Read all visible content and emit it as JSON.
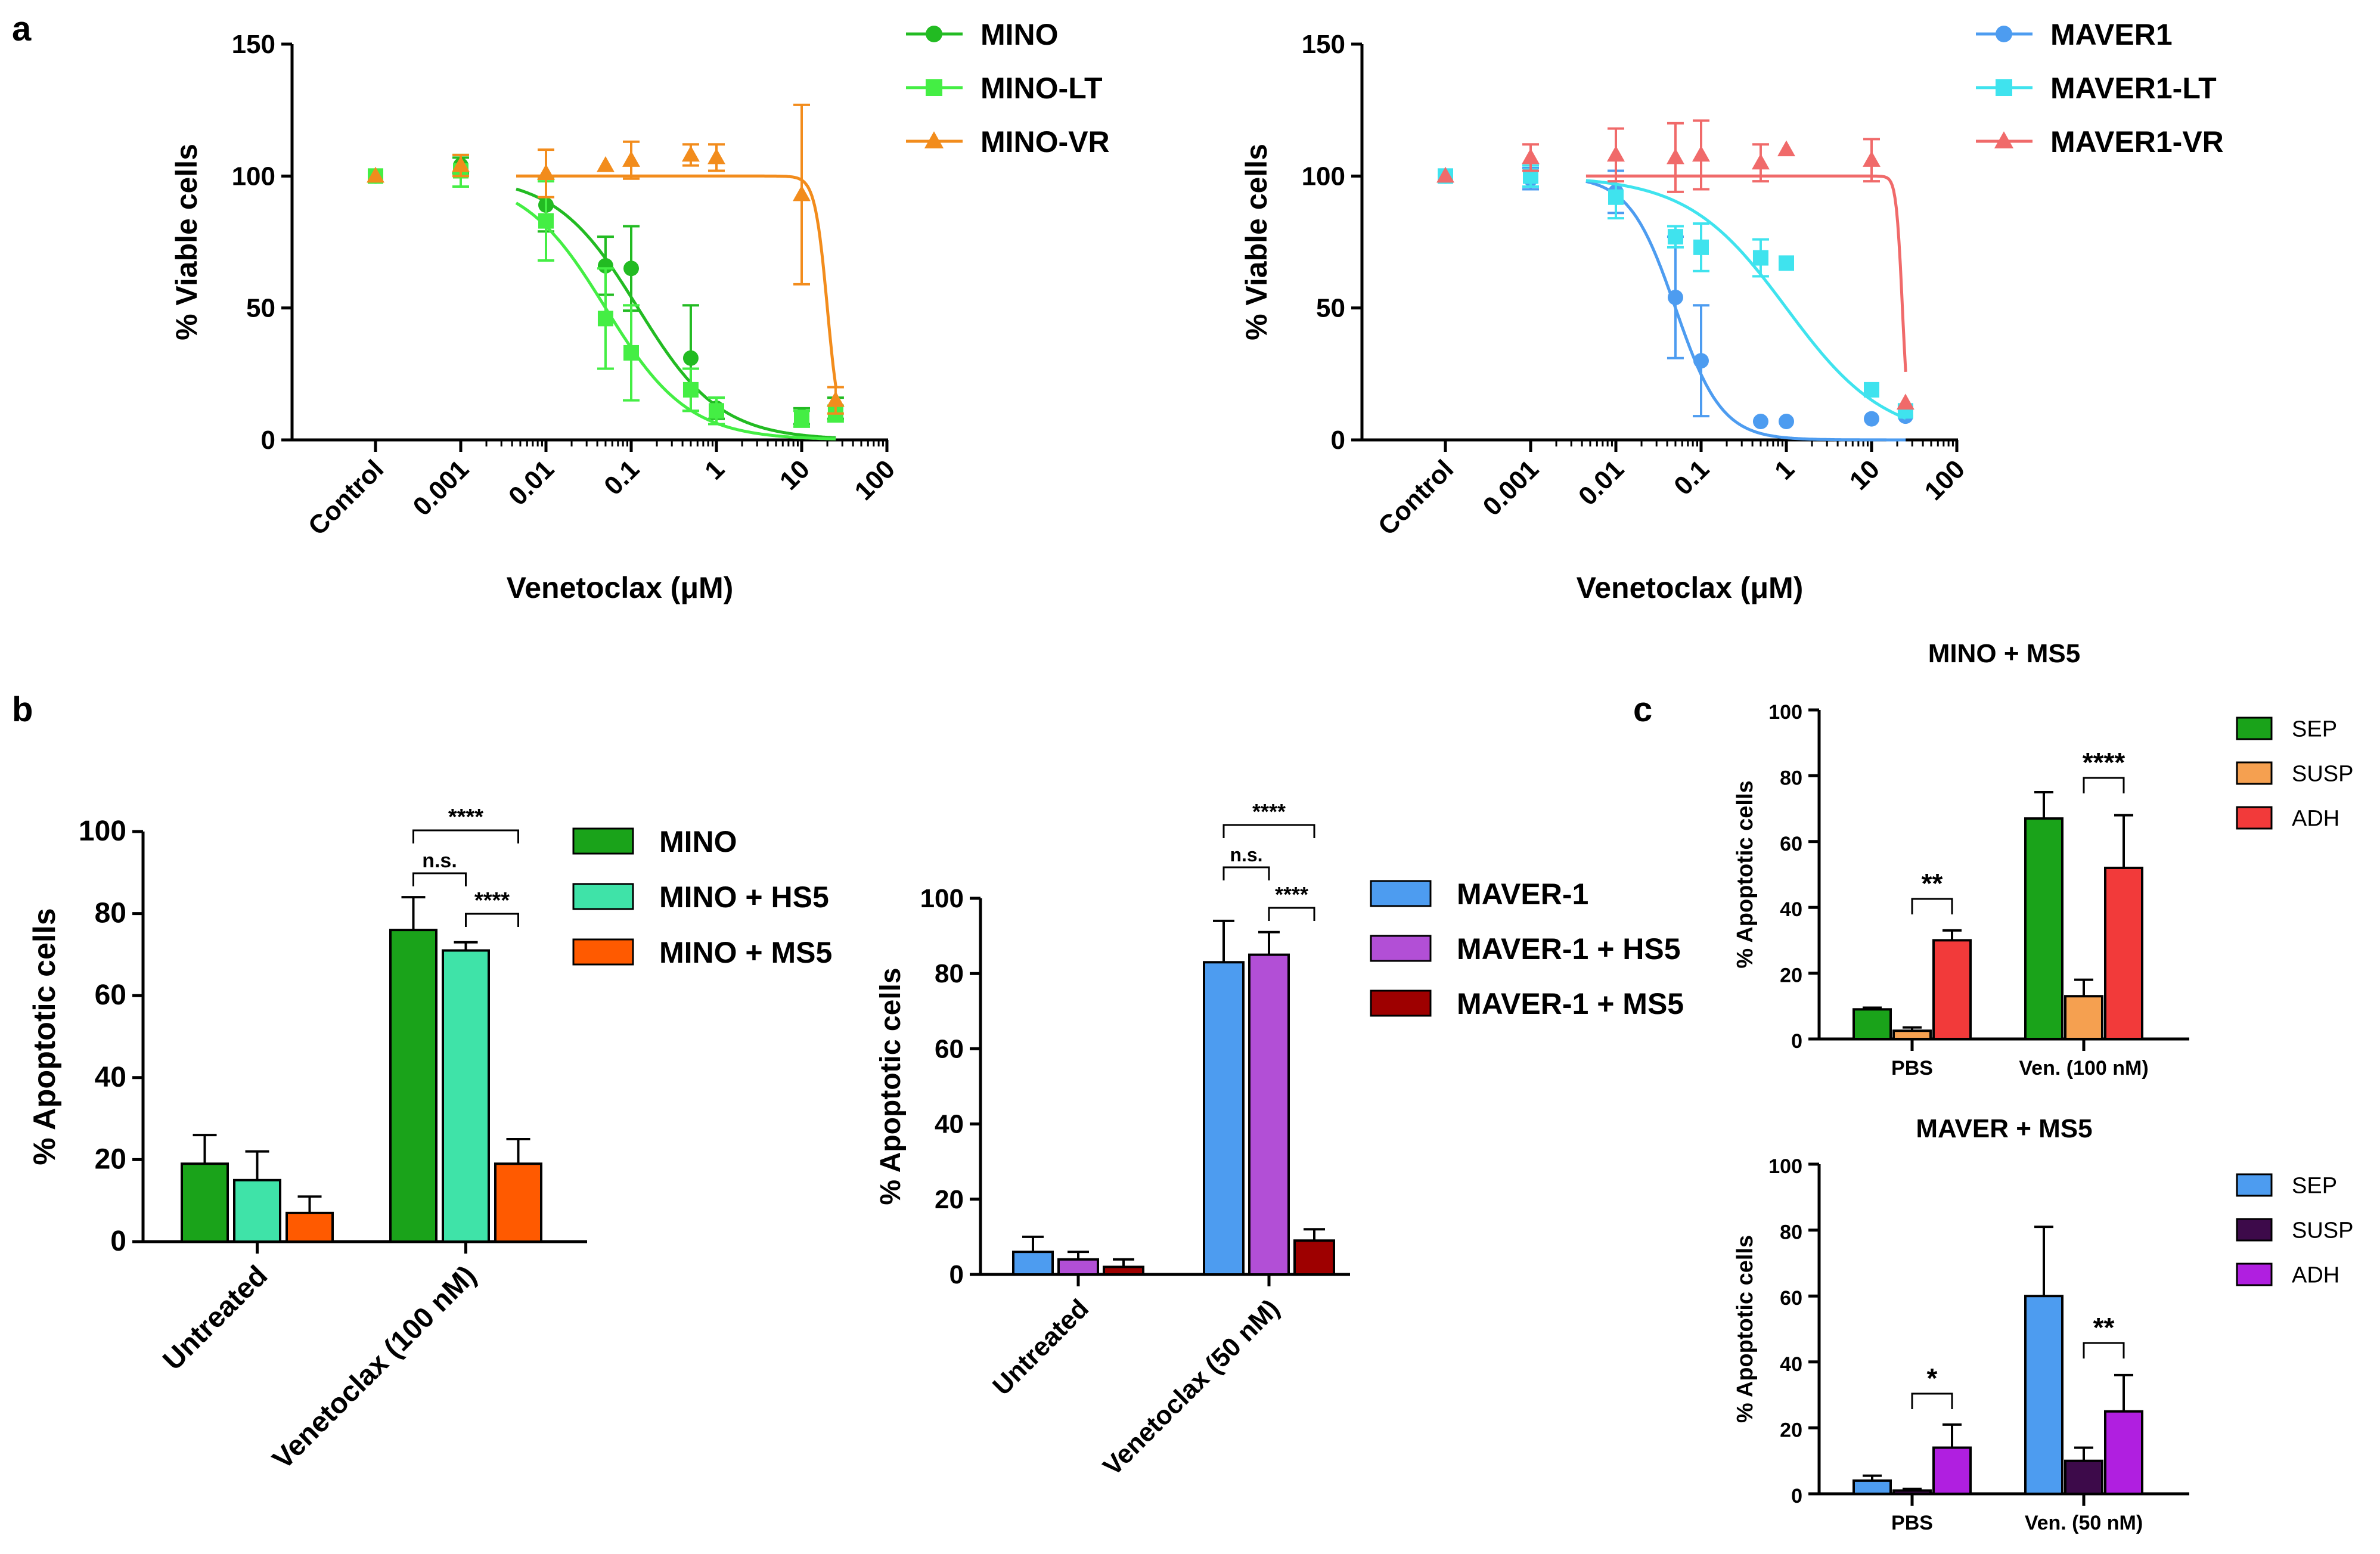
{
  "panel_labels": {
    "a": "a",
    "b": "b",
    "c": "c"
  },
  "colors": {
    "MINO": "#22bb22",
    "MINO-LT": "#44ee44",
    "MINO-VR": "#f28c1c",
    "MAVER1": "#4d9cf0",
    "MAVER1-LT": "#3fe3ee",
    "MAVER1-VR": "#f06a6a",
    "b_MINO": "#1aa31a",
    "b_MINO_HS5": "#3fe3a8",
    "b_MINO_MS5": "#ff5a00",
    "b_MAVER": "#4d9cf0",
    "b_MAVER_HS5": "#b24fd6",
    "b_MAVER_MS5": "#9e0000",
    "c_SEP_MINO": "#1aa31a",
    "c_SUSP_MINO": "#f5a050",
    "c_ADH_MINO": "#f23a3a",
    "c_SEP_MAVER": "#4d9cf0",
    "c_SUSP_MAVER": "#3d0a4a",
    "c_ADH_MAVER": "#b01fe0"
  },
  "chart_data": [
    {
      "id": "a_left",
      "type": "scatter",
      "title": "",
      "xlabel": "Venetoclax (μM)",
      "ylabel": "% Viable cells",
      "ylim": [
        0,
        150
      ],
      "yticks": [
        "0",
        "50",
        "100",
        "150"
      ],
      "xticks": [
        "Control",
        "0.001",
        "0.01",
        "0.1",
        "1",
        "10",
        "100"
      ],
      "series": [
        {
          "name": "MINO",
          "marker": "circle",
          "ic50": 0.12,
          "hill": 0.9,
          "points": [
            {
              "x": "Control",
              "y": 100,
              "err": 0
            },
            {
              "x": 0.001,
              "y": 104,
              "err": 3
            },
            {
              "x": 0.01,
              "y": 89,
              "err": 10
            },
            {
              "x": 0.05,
              "y": 66,
              "err": 11
            },
            {
              "x": 0.1,
              "y": 65,
              "err": 16
            },
            {
              "x": 0.5,
              "y": 31,
              "err": 20
            },
            {
              "x": 1,
              "y": 12,
              "err": 4
            },
            {
              "x": 10,
              "y": 9,
              "err": 3
            },
            {
              "x": 25,
              "y": 12,
              "err": 4
            }
          ]
        },
        {
          "name": "MINO-LT",
          "marker": "square",
          "ic50": 0.05,
          "hill": 0.9,
          "points": [
            {
              "x": "Control",
              "y": 100,
              "err": 0
            },
            {
              "x": 0.001,
              "y": 102,
              "err": 6
            },
            {
              "x": 0.01,
              "y": 83,
              "err": 15
            },
            {
              "x": 0.05,
              "y": 46,
              "err": 19
            },
            {
              "x": 0.1,
              "y": 33,
              "err": 18
            },
            {
              "x": 0.5,
              "y": 19,
              "err": 8
            },
            {
              "x": 1,
              "y": 11,
              "err": 5
            },
            {
              "x": 10,
              "y": 8,
              "err": 3
            },
            {
              "x": 25,
              "y": 10,
              "err": 3
            }
          ]
        },
        {
          "name": "MINO-VR",
          "marker": "triangle",
          "ic50": 20,
          "hill": 6,
          "points": [
            {
              "x": "Control",
              "y": 100,
              "err": 0
            },
            {
              "x": 0.001,
              "y": 104,
              "err": 4
            },
            {
              "x": 0.01,
              "y": 101,
              "err": 9
            },
            {
              "x": 0.05,
              "y": 104,
              "err": 0
            },
            {
              "x": 0.1,
              "y": 106,
              "err": 7
            },
            {
              "x": 0.5,
              "y": 108,
              "err": 4
            },
            {
              "x": 1,
              "y": 107,
              "err": 5
            },
            {
              "x": 10,
              "y": 93,
              "err": 34
            },
            {
              "x": 25,
              "y": 15,
              "err": 5
            }
          ]
        }
      ]
    },
    {
      "id": "a_right",
      "type": "scatter",
      "title": "",
      "xlabel": "Venetoclax (μM)",
      "ylabel": "% Viable cells",
      "ylim": [
        0,
        150
      ],
      "yticks": [
        "0",
        "50",
        "100",
        "150"
      ],
      "xticks": [
        "Control",
        "0.001",
        "0.01",
        "0.1",
        "1",
        "10",
        "100"
      ],
      "series": [
        {
          "name": "MAVER1",
          "marker": "circle",
          "ic50": 0.05,
          "hill": 1.6,
          "points": [
            {
              "x": "Control",
              "y": 100,
              "err": 0
            },
            {
              "x": 0.001,
              "y": 99,
              "err": 4
            },
            {
              "x": 0.01,
              "y": 94,
              "err": 8
            },
            {
              "x": 0.05,
              "y": 54,
              "err": 23
            },
            {
              "x": 0.1,
              "y": 30,
              "err": 21
            },
            {
              "x": 0.5,
              "y": 7,
              "err": 0
            },
            {
              "x": 1,
              "y": 7,
              "err": 0
            },
            {
              "x": 10,
              "y": 8,
              "err": 0
            },
            {
              "x": 25,
              "y": 9,
              "err": 0
            }
          ]
        },
        {
          "name": "MAVER1-LT",
          "marker": "square",
          "ic50": 1.0,
          "hill": 0.75,
          "points": [
            {
              "x": "Control",
              "y": 100,
              "err": 0
            },
            {
              "x": 0.001,
              "y": 100,
              "err": 4
            },
            {
              "x": 0.01,
              "y": 92,
              "err": 8
            },
            {
              "x": 0.05,
              "y": 77,
              "err": 4
            },
            {
              "x": 0.1,
              "y": 73,
              "err": 9
            },
            {
              "x": 0.5,
              "y": 69,
              "err": 7
            },
            {
              "x": 1,
              "y": 67,
              "err": 0
            },
            {
              "x": 10,
              "y": 19,
              "err": 0
            },
            {
              "x": 25,
              "y": 11,
              "err": 0
            }
          ]
        },
        {
          "name": "MAVER1-VR",
          "marker": "triangle",
          "ic50": 23,
          "hill": 12,
          "points": [
            {
              "x": "Control",
              "y": 100,
              "err": 0
            },
            {
              "x": 0.001,
              "y": 107,
              "err": 5
            },
            {
              "x": 0.01,
              "y": 108,
              "err": 10
            },
            {
              "x": 0.05,
              "y": 107,
              "err": 13
            },
            {
              "x": 0.1,
              "y": 108,
              "err": 13
            },
            {
              "x": 0.5,
              "y": 105,
              "err": 7
            },
            {
              "x": 1,
              "y": 110,
              "err": 0
            },
            {
              "x": 10,
              "y": 106,
              "err": 8
            },
            {
              "x": 25,
              "y": 14,
              "err": 0
            }
          ]
        }
      ]
    },
    {
      "id": "b_left",
      "type": "bar",
      "ylabel": "% Apoptotic cells",
      "ylim": [
        0,
        100
      ],
      "yticks": [
        "0",
        "20",
        "40",
        "60",
        "80",
        "100"
      ],
      "categories": [
        "Untreated",
        "Venetoclax (100 nM)"
      ],
      "series": [
        {
          "name": "MINO",
          "values": [
            19,
            76
          ],
          "errors": [
            7,
            8
          ]
        },
        {
          "name": "MINO + HS5",
          "values": [
            15,
            71
          ],
          "errors": [
            7,
            2
          ]
        },
        {
          "name": "MINO + MS5",
          "values": [
            7,
            19
          ],
          "errors": [
            4,
            6
          ]
        }
      ],
      "annotations": [
        "****",
        "n.s.",
        "****"
      ]
    },
    {
      "id": "b_right",
      "type": "bar",
      "ylabel": "% Apoptotic cells",
      "ylim": [
        0,
        100
      ],
      "yticks": [
        "0",
        "20",
        "40",
        "60",
        "80",
        "100"
      ],
      "categories": [
        "Untreated",
        "Venetoclax (50 nM)"
      ],
      "series": [
        {
          "name": "MAVER-1",
          "values": [
            6,
            83
          ],
          "errors": [
            4,
            11
          ]
        },
        {
          "name": "MAVER-1 + HS5",
          "values": [
            4,
            85
          ],
          "errors": [
            2,
            6
          ]
        },
        {
          "name": "MAVER-1 + MS5",
          "values": [
            2,
            9
          ],
          "errors": [
            2,
            3
          ]
        }
      ],
      "annotations": [
        "****",
        "n.s.",
        "****"
      ]
    },
    {
      "id": "c_top",
      "type": "bar",
      "title": "MINO + MS5",
      "ylabel": "% Apoptotic cells",
      "ylim": [
        0,
        100
      ],
      "yticks": [
        "0",
        "20",
        "40",
        "60",
        "80",
        "100"
      ],
      "categories": [
        "PBS",
        "Ven. (100 nM)"
      ],
      "series": [
        {
          "name": "SEP",
          "values": [
            9,
            67
          ],
          "errors": [
            0.5,
            8
          ]
        },
        {
          "name": "SUSP",
          "values": [
            2.5,
            13
          ],
          "errors": [
            1,
            5
          ]
        },
        {
          "name": "ADH",
          "values": [
            30,
            52
          ],
          "errors": [
            3,
            16
          ]
        }
      ],
      "annotations": [
        "**",
        "****"
      ]
    },
    {
      "id": "c_bottom",
      "type": "bar",
      "title": "MAVER + MS5",
      "ylabel": "% Apoptotic cells",
      "ylim": [
        0,
        100
      ],
      "yticks": [
        "0",
        "20",
        "40",
        "60",
        "80",
        "100"
      ],
      "categories": [
        "PBS",
        "Ven. (50 nM)"
      ],
      "series": [
        {
          "name": "SEP",
          "values": [
            4,
            60
          ],
          "errors": [
            1.5,
            21
          ]
        },
        {
          "name": "SUSP",
          "values": [
            1,
            10
          ],
          "errors": [
            0.5,
            4
          ]
        },
        {
          "name": "ADH",
          "values": [
            14,
            25
          ],
          "errors": [
            7,
            11
          ]
        }
      ],
      "annotations": [
        "*",
        "**"
      ]
    }
  ]
}
